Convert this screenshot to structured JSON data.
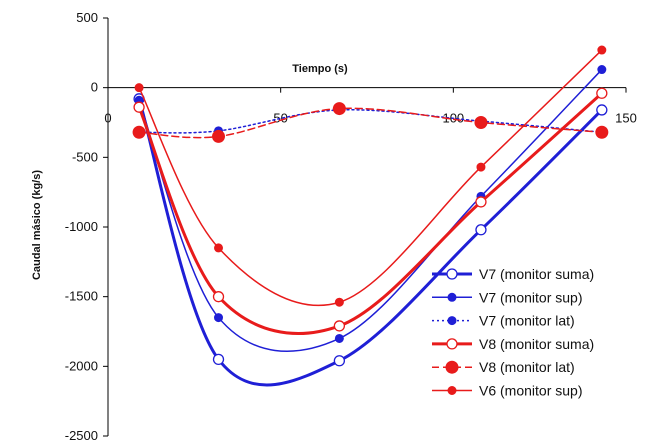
{
  "chart_data": {
    "type": "line",
    "title": "",
    "xlabel": "Tiempo (s)",
    "ylabel": "Caudal másico (kg/s)",
    "xlim": [
      0,
      150
    ],
    "ylim": [
      -2500,
      500
    ],
    "x_ticks": [
      "0",
      "50",
      "100",
      "150"
    ],
    "y_ticks": [
      "500",
      "0",
      "-500",
      "-1000",
      "-1500",
      "-2000",
      "-2500"
    ],
    "grid": false,
    "legend_position": "bottom-right",
    "series": [
      {
        "name": "V7 (monitor suma)",
        "color": "#1f1fd6",
        "line_width": 3,
        "dash": "solid",
        "marker": "open-circle",
        "marker_size": 5,
        "x": [
          9,
          32,
          67,
          108,
          143
        ],
        "y": [
          -80,
          -1950,
          -1960,
          -1020,
          -160
        ]
      },
      {
        "name": "V7 (monitor sup)",
        "color": "#1f1fd6",
        "line_width": 1.5,
        "dash": "solid",
        "marker": "filled-circle",
        "marker_size": 4,
        "x": [
          9,
          32,
          67,
          108,
          143
        ],
        "y": [
          -90,
          -1650,
          -1800,
          -780,
          130
        ]
      },
      {
        "name": "V7 (monitor lat)",
        "color": "#1f1fd6",
        "line_width": 1.5,
        "dash": "dotted",
        "marker": "filled-circle",
        "marker_size": 4,
        "x": [
          9,
          32,
          67,
          108,
          143
        ],
        "y": [
          -320,
          -310,
          -160,
          -240,
          -320
        ]
      },
      {
        "name": "V8 (monitor suma)",
        "color": "#e81b1b",
        "line_width": 3,
        "dash": "solid",
        "marker": "open-circle",
        "marker_size": 5,
        "x": [
          9,
          32,
          67,
          108,
          143
        ],
        "y": [
          -140,
          -1500,
          -1710,
          -820,
          -40
        ]
      },
      {
        "name": "V8 (monitor lat)",
        "color": "#e81b1b",
        "line_width": 1.5,
        "dash": "dashed",
        "marker": "filled-circle",
        "marker_size": 6,
        "x": [
          9,
          32,
          67,
          108,
          143
        ],
        "y": [
          -320,
          -350,
          -150,
          -250,
          -320
        ]
      },
      {
        "name": "V6 (monitor sup)",
        "color": "#e81b1b",
        "line_width": 1.5,
        "dash": "solid",
        "marker": "filled-circle",
        "marker_size": 4,
        "x": [
          9,
          32,
          67,
          108,
          143
        ],
        "y": [
          0,
          -1150,
          -1540,
          -570,
          270
        ]
      }
    ]
  }
}
